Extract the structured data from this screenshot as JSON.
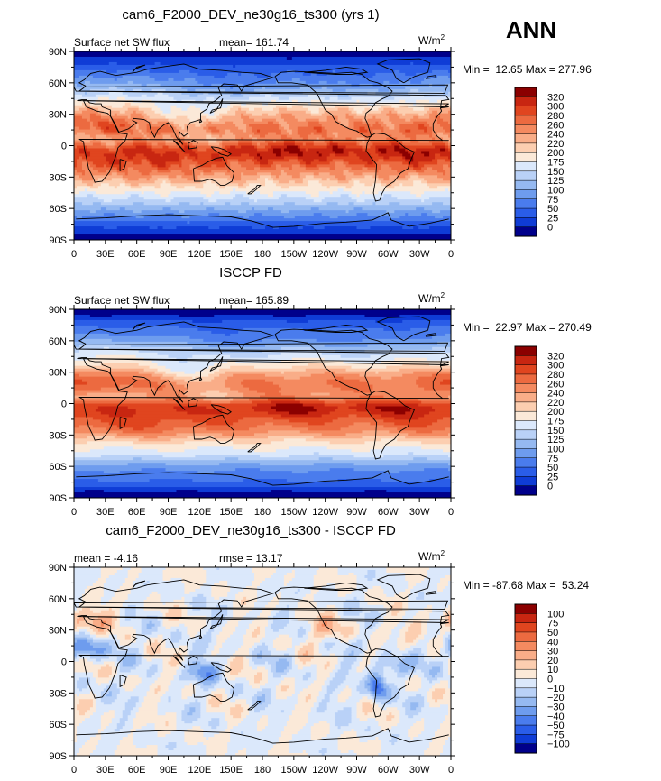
{
  "season": "ANN",
  "chart_data": [
    {
      "type": "heatmap",
      "title": "cam6_F2000_DEV_ne30g16_ts300 (yrs 1)",
      "variable_label": "Surface net SW flux",
      "stat_text": "mean= 161.74",
      "units_text": "W/m",
      "units_sup": "2",
      "min": 12.65,
      "max": 277.96,
      "minmax_text": "Min =  12.65 Max = 277.96",
      "colorbar_levels": [
        "320",
        "300",
        "280",
        "260",
        "240",
        "220",
        "200",
        "175",
        "150",
        "125",
        "100",
        "75",
        "50",
        "25",
        "0"
      ],
      "colors": [
        "#8b0000",
        "#c82611",
        "#e0451f",
        "#ec6a40",
        "#f48a60",
        "#f9ad88",
        "#fcceb0",
        "#fbe9d8",
        "#dbe8fb",
        "#b9d1f7",
        "#95b9f1",
        "#6e9cee",
        "#4a7ced",
        "#2a5de8",
        "#0f3cd6",
        "#00008b"
      ],
      "x_ticks": [
        "0",
        "30E",
        "60E",
        "90E",
        "120E",
        "150E",
        "180",
        "150W",
        "120W",
        "90W",
        "60W",
        "30W",
        "0"
      ],
      "y_ticks": [
        "90N",
        "60N",
        "30N",
        "0",
        "30S",
        "60S",
        "90S"
      ],
      "field": "model"
    },
    {
      "type": "heatmap",
      "title": "ISCCP FD",
      "variable_label": "Surface net SW flux",
      "stat_text": "mean= 165.89",
      "units_text": "W/m",
      "units_sup": "2",
      "min": 22.97,
      "max": 270.49,
      "minmax_text": "Min =  22.97 Max = 270.49",
      "colorbar_levels": [
        "320",
        "300",
        "280",
        "260",
        "240",
        "220",
        "200",
        "175",
        "150",
        "125",
        "100",
        "75",
        "50",
        "25",
        "0"
      ],
      "colors": [
        "#8b0000",
        "#c82611",
        "#e0451f",
        "#ec6a40",
        "#f48a60",
        "#f9ad88",
        "#fcceb0",
        "#fbe9d8",
        "#dbe8fb",
        "#b9d1f7",
        "#95b9f1",
        "#6e9cee",
        "#4a7ced",
        "#2a5de8",
        "#0f3cd6",
        "#00008b"
      ],
      "x_ticks": [
        "0",
        "30E",
        "60E",
        "90E",
        "120E",
        "150E",
        "180",
        "150W",
        "120W",
        "90W",
        "60W",
        "30W",
        "0"
      ],
      "y_ticks": [
        "90N",
        "60N",
        "30N",
        "0",
        "30S",
        "60S",
        "90S"
      ],
      "field": "obs"
    },
    {
      "type": "heatmap",
      "title": "cam6_F2000_DEV_ne30g16_ts300 - ISCCP FD",
      "variable_label": "mean =   -4.16",
      "stat_text": "rmse =   13.17",
      "units_text": "W/m",
      "units_sup": "2",
      "min": -87.68,
      "max": 53.24,
      "minmax_text": "Min = -87.68 Max =  53.24",
      "colorbar_levels": [
        "100",
        "75",
        "50",
        "40",
        "30",
        "20",
        "10",
        "0",
        "−10",
        "−20",
        "−30",
        "−40",
        "−50",
        "−75",
        "−100"
      ],
      "colors": [
        "#8b0000",
        "#c82611",
        "#e0451f",
        "#ec6a40",
        "#f48a60",
        "#f9ad88",
        "#fcceb0",
        "#fbe9d8",
        "#dbe8fb",
        "#b9d1f7",
        "#95b9f1",
        "#6e9cee",
        "#4a7ced",
        "#2a5de8",
        "#0f3cd6",
        "#00008b"
      ],
      "x_ticks": [
        "0",
        "30E",
        "60E",
        "90E",
        "120E",
        "150E",
        "180",
        "150W",
        "120W",
        "90W",
        "60W",
        "30W",
        "0"
      ],
      "y_ticks": [
        "90N",
        "60N",
        "30N",
        "0",
        "30S",
        "60S",
        "90S"
      ],
      "field": "diff"
    }
  ]
}
